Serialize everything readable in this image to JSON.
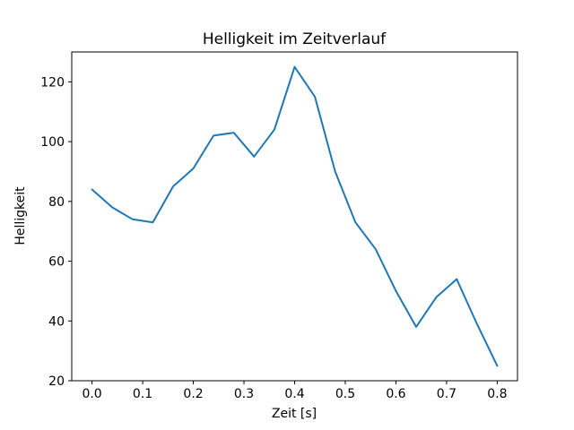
{
  "figure": {
    "background": "#ffffff",
    "frame_color": "#000000",
    "text_color": "#000000"
  },
  "chart_data": {
    "type": "line",
    "title": "Helligkeit im Zeitverlauf",
    "xlabel": "Zeit [s]",
    "ylabel": "Helligkeit",
    "x": [
      0.0,
      0.04,
      0.08,
      0.12,
      0.16,
      0.2,
      0.24,
      0.28,
      0.32,
      0.36,
      0.4,
      0.44,
      0.48,
      0.52,
      0.56,
      0.6,
      0.64,
      0.68,
      0.72,
      0.76,
      0.8
    ],
    "y": [
      84,
      78,
      74,
      73,
      85,
      91,
      102,
      103,
      95,
      104,
      125,
      115,
      90,
      73,
      64,
      50,
      38,
      48,
      54,
      39,
      25
    ],
    "series_name": "Helligkeit",
    "line_color": "#1f77b4",
    "line_width": 2,
    "xlim": [
      -0.04,
      0.84
    ],
    "ylim": [
      20,
      130
    ],
    "x_ticks": [
      0.0,
      0.1,
      0.2,
      0.3,
      0.4,
      0.5,
      0.6,
      0.7,
      0.8
    ],
    "x_tick_labels": [
      "0.0",
      "0.1",
      "0.2",
      "0.3",
      "0.4",
      "0.5",
      "0.6",
      "0.7",
      "0.8"
    ],
    "y_ticks": [
      20,
      40,
      60,
      80,
      100,
      120
    ],
    "y_tick_labels": [
      "20",
      "40",
      "60",
      "80",
      "100",
      "120"
    ],
    "grid": false,
    "legend": null
  }
}
